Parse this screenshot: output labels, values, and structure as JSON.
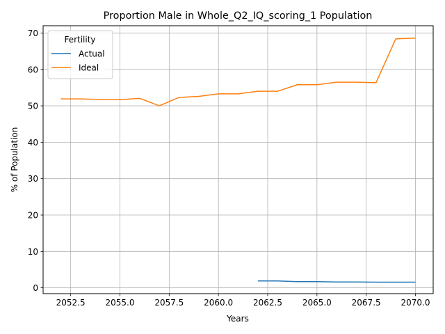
{
  "chart_data": {
    "type": "line",
    "title": "Proportion Male in Whole_Q2_IQ_scoring_1 Population",
    "xlabel": "Years",
    "ylabel": "% of Population",
    "xlim": [
      2051.1,
      2070.9
    ],
    "ylim": [
      -1.6,
      72.0
    ],
    "grid": true,
    "legend": {
      "title": "Fertility",
      "placement": "top-left"
    },
    "x_ticks": [
      "2052.5",
      "2055.0",
      "2057.5",
      "2060.0",
      "2062.5",
      "2065.0",
      "2067.5",
      "2070.0"
    ],
    "x_tick_values": [
      2052.5,
      2055.0,
      2057.5,
      2060.0,
      2062.5,
      2065.0,
      2067.5,
      2070.0
    ],
    "y_ticks": [
      "0",
      "10",
      "20",
      "30",
      "40",
      "50",
      "60",
      "70"
    ],
    "y_tick_values": [
      0,
      10,
      20,
      30,
      40,
      50,
      60,
      70
    ],
    "series": [
      {
        "name": "Actual",
        "color": "#1f77b4",
        "x": [
          2062,
          2063,
          2064,
          2065,
          2066,
          2067,
          2068,
          2069,
          2070
        ],
        "y": [
          1.9,
          1.9,
          1.7,
          1.7,
          1.6,
          1.6,
          1.55,
          1.55,
          1.55
        ]
      },
      {
        "name": "Ideal",
        "color": "#ff7f0e",
        "x": [
          2052,
          2053,
          2054,
          2055,
          2056,
          2057,
          2058,
          2059,
          2060,
          2061,
          2062,
          2063,
          2064,
          2065,
          2066,
          2067,
          2068,
          2069,
          2070
        ],
        "y": [
          51.9,
          51.9,
          51.75,
          51.7,
          52.05,
          50.0,
          52.3,
          52.6,
          53.3,
          53.3,
          54.0,
          54.0,
          55.8,
          55.8,
          56.5,
          56.5,
          56.35,
          68.4,
          68.6
        ]
      }
    ]
  }
}
